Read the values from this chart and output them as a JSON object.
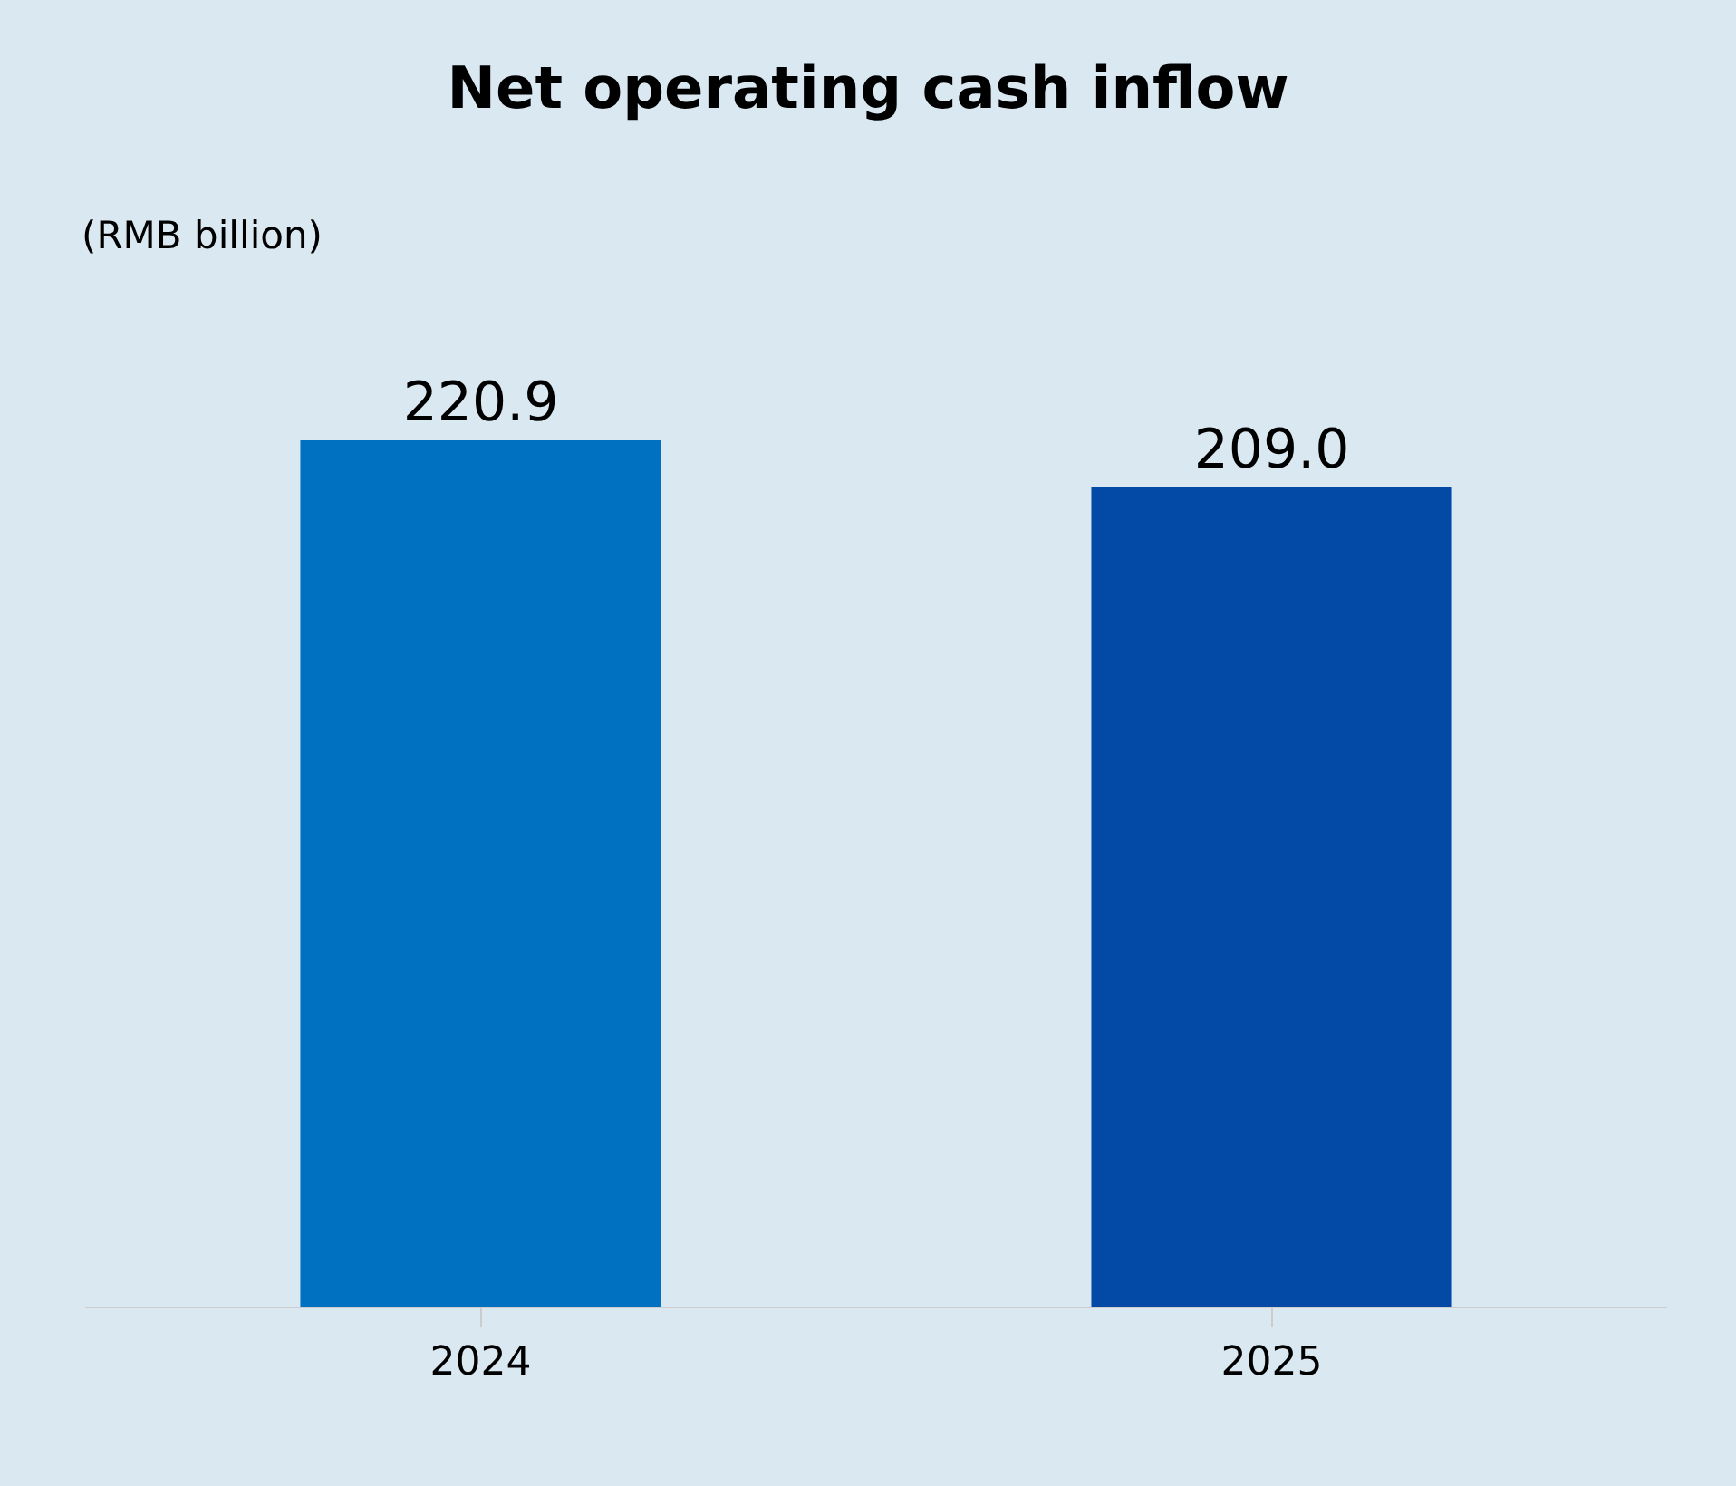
{
  "chart_data": {
    "type": "bar",
    "title": "Net operating cash inflow",
    "ylabel": "(RMB billion)",
    "categories": [
      "2024",
      "2025"
    ],
    "values": [
      220.9,
      209.0
    ],
    "colors": [
      "#0070c0",
      "#034aa6"
    ],
    "value_labels": [
      "220.9",
      "209.0"
    ],
    "data_labels": true,
    "grid": false,
    "legend": false
  }
}
